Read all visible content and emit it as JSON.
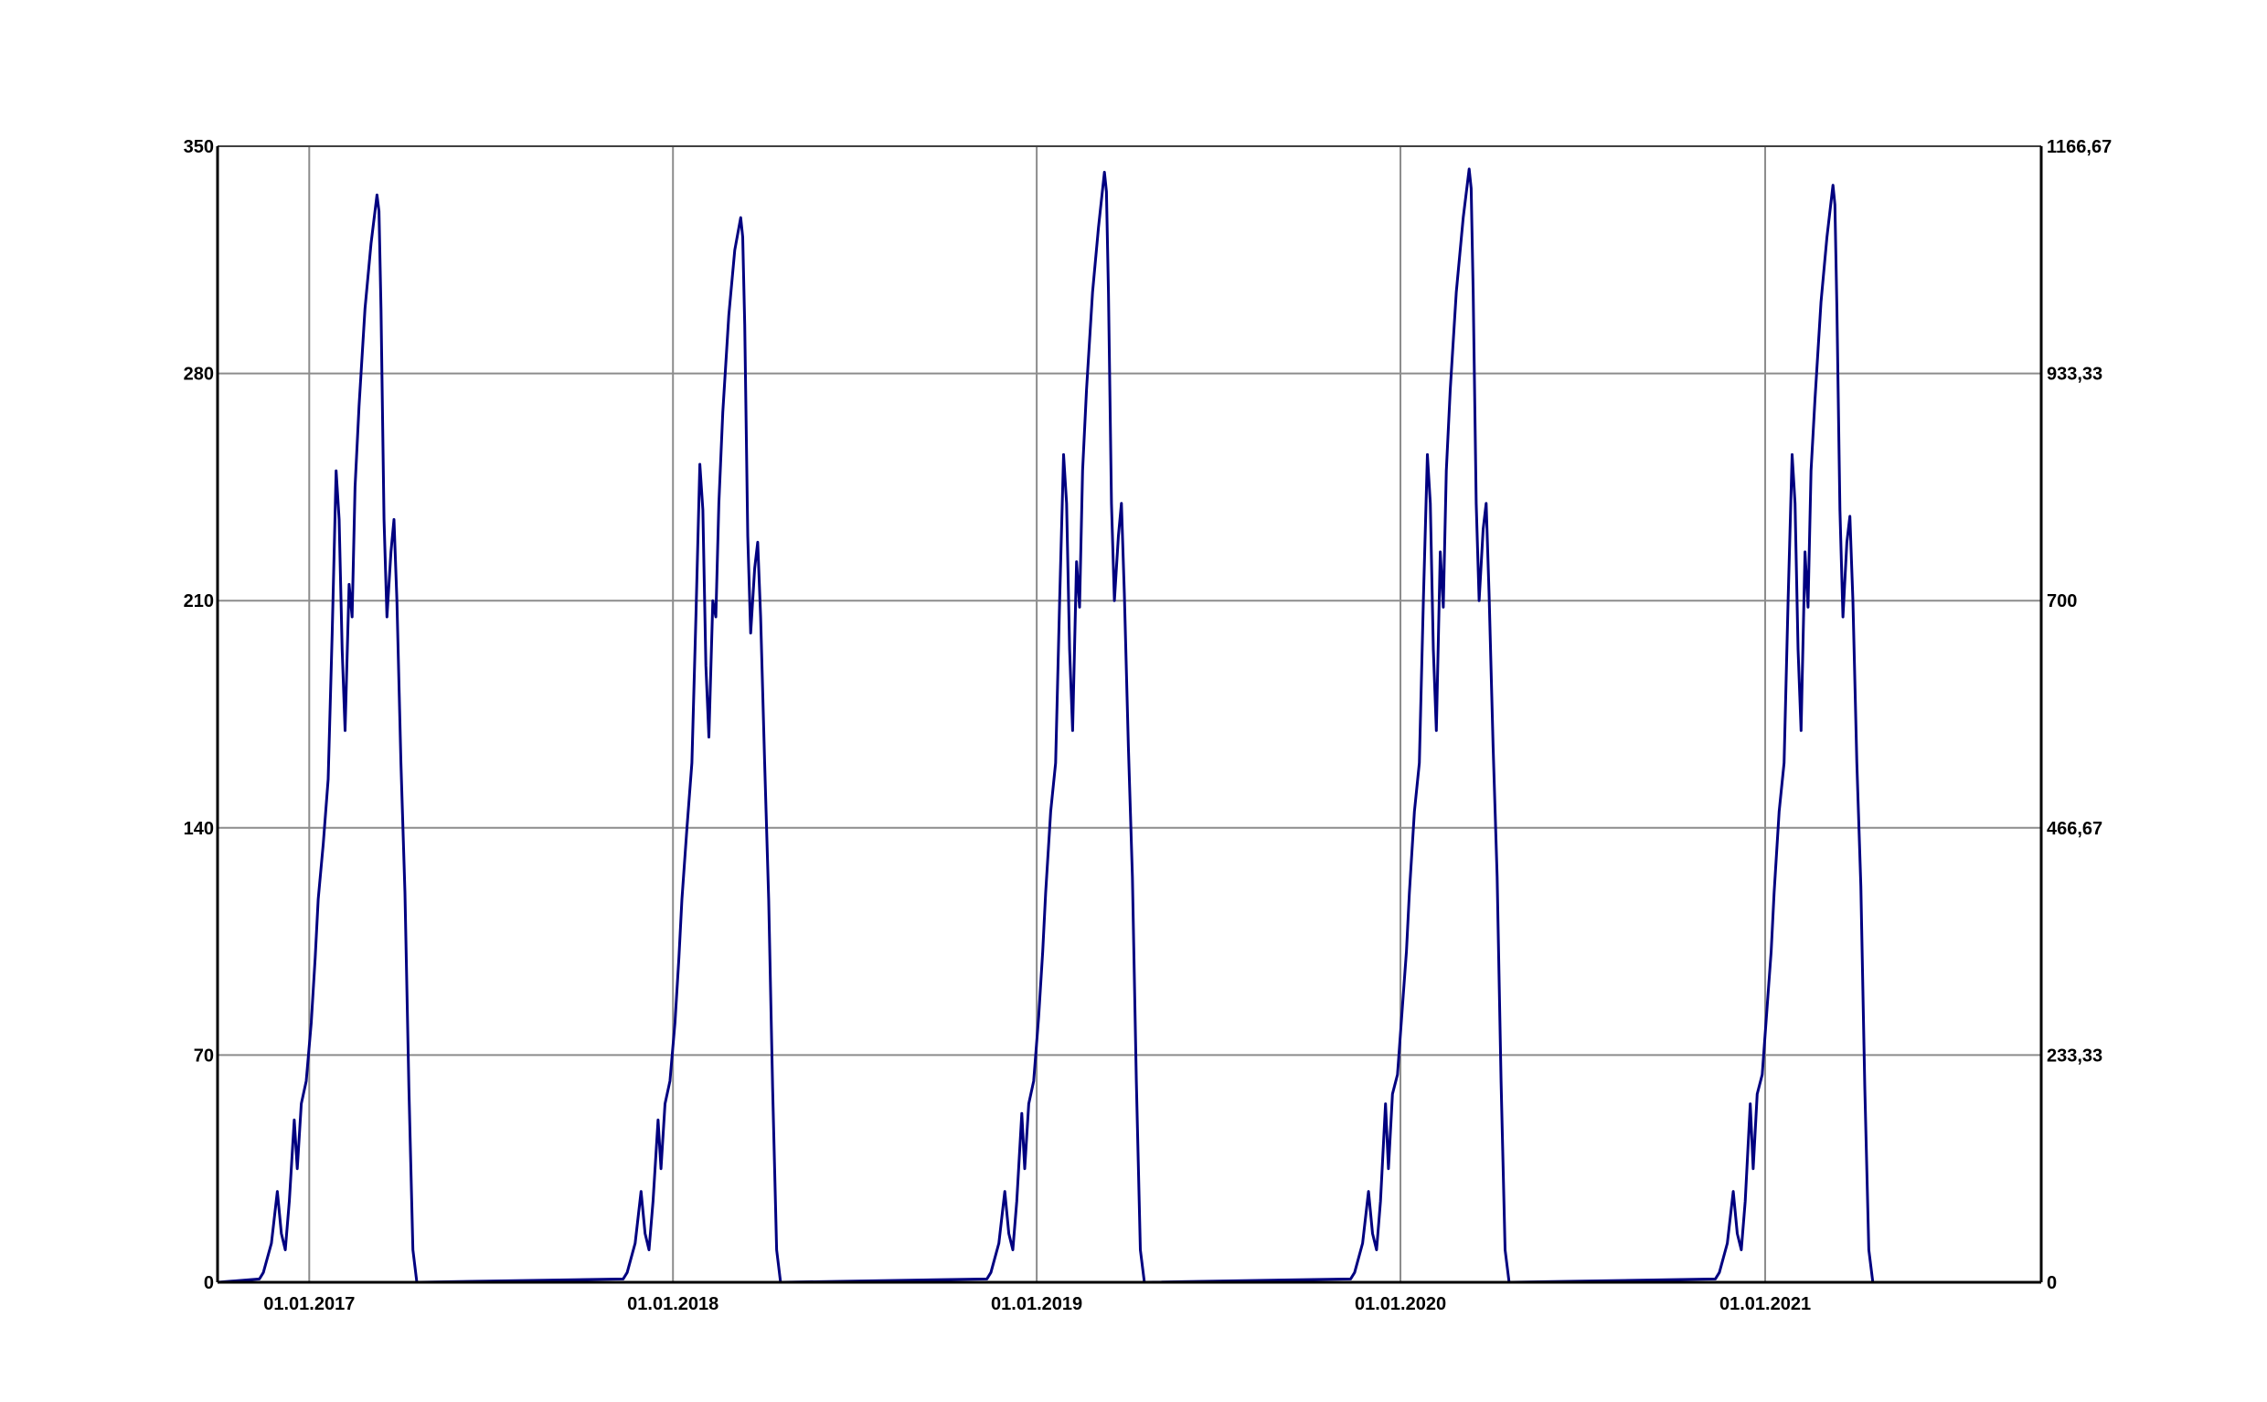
{
  "chart_data": {
    "type": "line",
    "title": "",
    "xlabel": "",
    "ylabel": "",
    "xlim": [
      "2016-10-01",
      "2021-10-05"
    ],
    "ylim": [
      0,
      350
    ],
    "y2lim": [
      0,
      1166.67
    ],
    "grid": true,
    "line_color": "#000080",
    "x_ticks": [
      {
        "date": "2017-01-01",
        "label": "01.01.2017"
      },
      {
        "date": "2018-01-01",
        "label": "01.01.2018"
      },
      {
        "date": "2019-01-01",
        "label": "01.01.2019"
      },
      {
        "date": "2020-01-01",
        "label": "01.01.2020"
      },
      {
        "date": "2021-01-01",
        "label": "01.01.2021"
      }
    ],
    "y_ticks": [
      {
        "value": 0,
        "label": "0"
      },
      {
        "value": 70,
        "label": "70"
      },
      {
        "value": 140,
        "label": "140"
      },
      {
        "value": 210,
        "label": "210"
      },
      {
        "value": 280,
        "label": "280"
      },
      {
        "value": 350,
        "label": "350"
      }
    ],
    "y2_ticks": [
      {
        "value": 0,
        "label": "0"
      },
      {
        "value": 233.33,
        "label": "233,33"
      },
      {
        "value": 466.67,
        "label": "466,67"
      },
      {
        "value": 700,
        "label": "700"
      },
      {
        "value": 933.33,
        "label": "933,33"
      },
      {
        "value": 1166.67,
        "label": "1166,67"
      }
    ],
    "points": [
      [
        "2016-10-01",
        0
      ],
      [
        "2016-11-12",
        1
      ],
      [
        "2016-11-16",
        3
      ],
      [
        "2016-11-24",
        12
      ],
      [
        "2016-11-30",
        28
      ],
      [
        "2016-12-04",
        15
      ],
      [
        "2016-12-08",
        10
      ],
      [
        "2016-12-12",
        25
      ],
      [
        "2016-12-17",
        50
      ],
      [
        "2016-12-20",
        35
      ],
      [
        "2016-12-24",
        55
      ],
      [
        "2016-12-29",
        62
      ],
      [
        "2017-01-03",
        80
      ],
      [
        "2017-01-07",
        100
      ],
      [
        "2017-01-10",
        118
      ],
      [
        "2017-01-15",
        135
      ],
      [
        "2017-01-20",
        155
      ],
      [
        "2017-01-24",
        200
      ],
      [
        "2017-01-28",
        250
      ],
      [
        "2017-01-31",
        235
      ],
      [
        "2017-02-03",
        195
      ],
      [
        "2017-02-06",
        170
      ],
      [
        "2017-02-10",
        215
      ],
      [
        "2017-02-13",
        205
      ],
      [
        "2017-02-16",
        245
      ],
      [
        "2017-02-20",
        270
      ],
      [
        "2017-02-26",
        300
      ],
      [
        "2017-03-04",
        320
      ],
      [
        "2017-03-10",
        335
      ],
      [
        "2017-03-12",
        330
      ],
      [
        "2017-03-14",
        300
      ],
      [
        "2017-03-17",
        235
      ],
      [
        "2017-03-20",
        205
      ],
      [
        "2017-03-24",
        225
      ],
      [
        "2017-03-27",
        235
      ],
      [
        "2017-03-30",
        210
      ],
      [
        "2017-04-03",
        160
      ],
      [
        "2017-04-07",
        120
      ],
      [
        "2017-04-11",
        60
      ],
      [
        "2017-04-15",
        10
      ],
      [
        "2017-04-19",
        0
      ],
      [
        "2017-11-12",
        1
      ],
      [
        "2017-11-16",
        3
      ],
      [
        "2017-11-24",
        12
      ],
      [
        "2017-11-30",
        28
      ],
      [
        "2017-12-04",
        15
      ],
      [
        "2017-12-08",
        10
      ],
      [
        "2017-12-12",
        25
      ],
      [
        "2017-12-17",
        50
      ],
      [
        "2017-12-20",
        35
      ],
      [
        "2017-12-24",
        55
      ],
      [
        "2017-12-29",
        62
      ],
      [
        "2018-01-03",
        80
      ],
      [
        "2018-01-07",
        100
      ],
      [
        "2018-01-10",
        118
      ],
      [
        "2018-01-15",
        140
      ],
      [
        "2018-01-20",
        160
      ],
      [
        "2018-01-24",
        205
      ],
      [
        "2018-01-28",
        252
      ],
      [
        "2018-01-31",
        238
      ],
      [
        "2018-02-03",
        190
      ],
      [
        "2018-02-06",
        168
      ],
      [
        "2018-02-10",
        210
      ],
      [
        "2018-02-13",
        205
      ],
      [
        "2018-02-16",
        240
      ],
      [
        "2018-02-20",
        268
      ],
      [
        "2018-02-26",
        298
      ],
      [
        "2018-03-04",
        318
      ],
      [
        "2018-03-10",
        328
      ],
      [
        "2018-03-12",
        322
      ],
      [
        "2018-03-14",
        295
      ],
      [
        "2018-03-17",
        230
      ],
      [
        "2018-03-20",
        200
      ],
      [
        "2018-03-24",
        220
      ],
      [
        "2018-03-27",
        228
      ],
      [
        "2018-03-30",
        205
      ],
      [
        "2018-04-03",
        160
      ],
      [
        "2018-04-07",
        118
      ],
      [
        "2018-04-11",
        60
      ],
      [
        "2018-04-15",
        10
      ],
      [
        "2018-04-19",
        0
      ],
      [
        "2018-11-12",
        1
      ],
      [
        "2018-11-16",
        3
      ],
      [
        "2018-11-24",
        12
      ],
      [
        "2018-11-30",
        28
      ],
      [
        "2018-12-04",
        15
      ],
      [
        "2018-12-08",
        10
      ],
      [
        "2018-12-12",
        25
      ],
      [
        "2018-12-17",
        52
      ],
      [
        "2018-12-20",
        35
      ],
      [
        "2018-12-24",
        55
      ],
      [
        "2018-12-29",
        62
      ],
      [
        "2019-01-03",
        82
      ],
      [
        "2019-01-07",
        102
      ],
      [
        "2019-01-10",
        120
      ],
      [
        "2019-01-15",
        145
      ],
      [
        "2019-01-20",
        160
      ],
      [
        "2019-01-24",
        210
      ],
      [
        "2019-01-28",
        255
      ],
      [
        "2019-01-31",
        240
      ],
      [
        "2019-02-03",
        195
      ],
      [
        "2019-02-06",
        170
      ],
      [
        "2019-02-10",
        222
      ],
      [
        "2019-02-13",
        208
      ],
      [
        "2019-02-16",
        250
      ],
      [
        "2019-02-20",
        275
      ],
      [
        "2019-02-26",
        305
      ],
      [
        "2019-03-04",
        325
      ],
      [
        "2019-03-10",
        342
      ],
      [
        "2019-03-12",
        336
      ],
      [
        "2019-03-14",
        305
      ],
      [
        "2019-03-17",
        240
      ],
      [
        "2019-03-20",
        210
      ],
      [
        "2019-03-24",
        230
      ],
      [
        "2019-03-27",
        240
      ],
      [
        "2019-03-30",
        212
      ],
      [
        "2019-04-03",
        165
      ],
      [
        "2019-04-07",
        125
      ],
      [
        "2019-04-11",
        62
      ],
      [
        "2019-04-15",
        10
      ],
      [
        "2019-04-19",
        0
      ],
      [
        "2019-11-12",
        1
      ],
      [
        "2019-11-16",
        3
      ],
      [
        "2019-11-24",
        12
      ],
      [
        "2019-11-30",
        28
      ],
      [
        "2019-12-04",
        15
      ],
      [
        "2019-12-08",
        10
      ],
      [
        "2019-12-12",
        25
      ],
      [
        "2019-12-17",
        55
      ],
      [
        "2019-12-20",
        35
      ],
      [
        "2019-12-24",
        58
      ],
      [
        "2019-12-29",
        64
      ],
      [
        "2020-01-03",
        85
      ],
      [
        "2020-01-07",
        102
      ],
      [
        "2020-01-10",
        120
      ],
      [
        "2020-01-15",
        145
      ],
      [
        "2020-01-20",
        160
      ],
      [
        "2020-01-24",
        210
      ],
      [
        "2020-01-28",
        255
      ],
      [
        "2020-01-31",
        240
      ],
      [
        "2020-02-03",
        195
      ],
      [
        "2020-02-06",
        170
      ],
      [
        "2020-02-10",
        225
      ],
      [
        "2020-02-13",
        208
      ],
      [
        "2020-02-16",
        250
      ],
      [
        "2020-02-20",
        275
      ],
      [
        "2020-02-26",
        305
      ],
      [
        "2020-03-04",
        328
      ],
      [
        "2020-03-10",
        343
      ],
      [
        "2020-03-12",
        337
      ],
      [
        "2020-03-14",
        305
      ],
      [
        "2020-03-17",
        240
      ],
      [
        "2020-03-20",
        210
      ],
      [
        "2020-03-24",
        232
      ],
      [
        "2020-03-27",
        240
      ],
      [
        "2020-03-30",
        212
      ],
      [
        "2020-04-03",
        165
      ],
      [
        "2020-04-07",
        125
      ],
      [
        "2020-04-11",
        62
      ],
      [
        "2020-04-15",
        10
      ],
      [
        "2020-04-19",
        0
      ],
      [
        "2020-11-12",
        1
      ],
      [
        "2020-11-16",
        3
      ],
      [
        "2020-11-24",
        12
      ],
      [
        "2020-11-30",
        28
      ],
      [
        "2020-12-04",
        15
      ],
      [
        "2020-12-08",
        10
      ],
      [
        "2020-12-12",
        25
      ],
      [
        "2020-12-17",
        55
      ],
      [
        "2020-12-20",
        35
      ],
      [
        "2020-12-24",
        58
      ],
      [
        "2020-12-29",
        64
      ],
      [
        "2021-01-03",
        85
      ],
      [
        "2021-01-07",
        102
      ],
      [
        "2021-01-10",
        120
      ],
      [
        "2021-01-15",
        145
      ],
      [
        "2021-01-20",
        160
      ],
      [
        "2021-01-24",
        210
      ],
      [
        "2021-01-28",
        255
      ],
      [
        "2021-01-31",
        240
      ],
      [
        "2021-02-03",
        195
      ],
      [
        "2021-02-06",
        170
      ],
      [
        "2021-02-10",
        225
      ],
      [
        "2021-02-13",
        208
      ],
      [
        "2021-02-16",
        250
      ],
      [
        "2021-02-20",
        272
      ],
      [
        "2021-02-26",
        302
      ],
      [
        "2021-03-04",
        322
      ],
      [
        "2021-03-10",
        338
      ],
      [
        "2021-03-12",
        332
      ],
      [
        "2021-03-14",
        300
      ],
      [
        "2021-03-17",
        238
      ],
      [
        "2021-03-20",
        205
      ],
      [
        "2021-03-24",
        228
      ],
      [
        "2021-03-27",
        236
      ],
      [
        "2021-03-30",
        210
      ],
      [
        "2021-04-03",
        160
      ],
      [
        "2021-04-07",
        122
      ],
      [
        "2021-04-11",
        60
      ],
      [
        "2021-04-15",
        10
      ],
      [
        "2021-04-19",
        0
      ],
      [
        "2021-10-05",
        0
      ]
    ]
  }
}
